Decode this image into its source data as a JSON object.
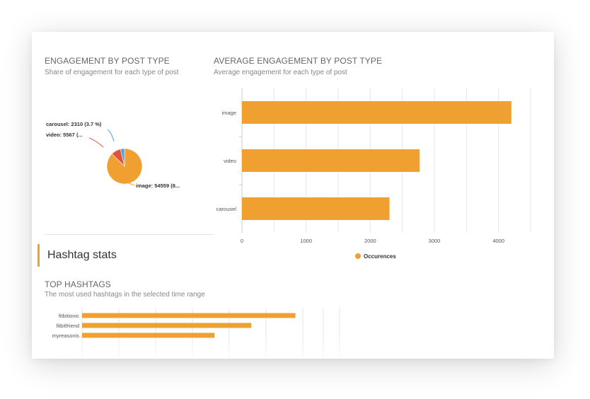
{
  "engagement_by_type": {
    "title": "ENGAGEMENT BY POST TYPE",
    "subtitle": "Share of engagement for each type of post"
  },
  "avg_engagement": {
    "title": "AVERAGE ENGAGEMENT BY POST TYPE",
    "subtitle": "Average engagement for each type of post"
  },
  "hashtag_section": {
    "title": "Hashtag stats"
  },
  "top_hashtags": {
    "title": "TOP HASHTAGS",
    "subtitle": "The most used hashtags in the selected time range"
  },
  "colors": {
    "accent": "#f0a030",
    "red": "#e0533d",
    "blue": "#4aa3df",
    "grid": "#e6e6e6"
  },
  "chart_data": [
    {
      "id": "pie",
      "type": "pie",
      "slices": [
        {
          "name": "image",
          "value": 54559,
          "label": "image: 54559 (8...",
          "color": "#f0a030"
        },
        {
          "name": "video",
          "value": 5567,
          "label": "video: 5567 (...",
          "color": "#e0533d"
        },
        {
          "name": "carousel",
          "value": 2310,
          "label": "carousel: 2310 (3.7 %)",
          "color": "#4aa3df"
        }
      ]
    },
    {
      "id": "avg",
      "type": "bar",
      "orientation": "horizontal",
      "categories": [
        "image",
        "video",
        "carousel"
      ],
      "values": [
        4200,
        2770,
        2300
      ],
      "xlim": [
        0,
        4500
      ],
      "ticks": [
        0,
        1000,
        2000,
        3000,
        4000
      ],
      "legend": [
        "Occurences"
      ],
      "grid": true
    },
    {
      "id": "hashtags",
      "type": "bar",
      "orientation": "horizontal",
      "categories": [
        "fitbitionic",
        "fitbitfriend",
        "myreasonis"
      ],
      "values": [
        58,
        46,
        36
      ],
      "grid": true
    }
  ]
}
